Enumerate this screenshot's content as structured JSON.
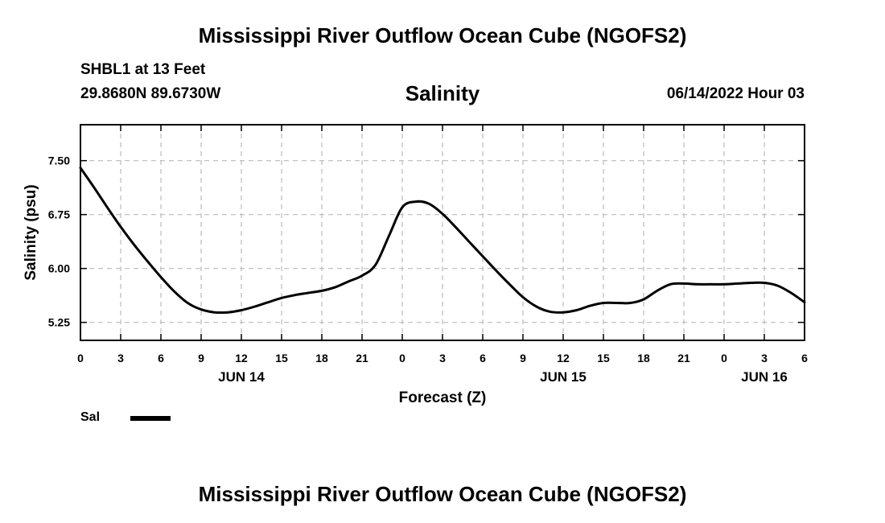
{
  "header": {
    "title": "Mississippi River Outflow Ocean Cube (NGOFS2)",
    "station": "SHBL1 at 13 Feet",
    "coordinates": "29.8680N  89.6730W",
    "datetime": "06/14/2022 Hour 03"
  },
  "footer": {
    "title": "Mississippi River Outflow Ocean Cube (NGOFS2)"
  },
  "legend": {
    "label": "Sal"
  },
  "colors": {
    "line": "#000000",
    "grid": "#bbbbbb",
    "axis": "#000000"
  },
  "chart_data": {
    "type": "line",
    "title": "Salinity",
    "xlabel": "Forecast (Z)",
    "ylabel": "Salinity (psu)",
    "xlim": [
      0,
      54
    ],
    "ylim": [
      5.0,
      8.0
    ],
    "grid": true,
    "legend_position": "bottom-left",
    "x_ticks": [
      0,
      3,
      6,
      9,
      12,
      15,
      18,
      21,
      24,
      27,
      30,
      33,
      36,
      39,
      42,
      45,
      48,
      51,
      54
    ],
    "x_tick_labels": [
      "0",
      "3",
      "6",
      "9",
      "12",
      "15",
      "18",
      "21",
      "0",
      "3",
      "6",
      "9",
      "12",
      "15",
      "18",
      "21",
      "0",
      "3",
      "6"
    ],
    "y_ticks": [
      5.25,
      6.0,
      6.75,
      7.5
    ],
    "y_tick_labels": [
      "5.25",
      "6.00",
      "6.75",
      "7.50"
    ],
    "date_labels": [
      {
        "x": 12,
        "label": "JUN 14"
      },
      {
        "x": 36,
        "label": "JUN 15"
      },
      {
        "x": 51,
        "label": "JUN 16"
      }
    ],
    "series": [
      {
        "name": "Sal",
        "x": [
          0,
          1,
          2,
          3,
          4,
          5,
          6,
          7,
          8,
          9,
          10,
          11,
          12,
          13,
          14,
          15,
          16,
          17,
          18,
          19,
          20,
          21,
          22,
          23,
          24,
          25,
          26,
          27,
          28,
          29,
          30,
          31,
          32,
          33,
          34,
          35,
          36,
          37,
          38,
          39,
          40,
          41,
          42,
          43,
          44,
          45,
          46,
          47,
          48,
          49,
          50,
          51,
          52,
          53,
          54
        ],
        "values": [
          7.4,
          7.13,
          6.85,
          6.58,
          6.33,
          6.1,
          5.88,
          5.68,
          5.52,
          5.43,
          5.39,
          5.39,
          5.42,
          5.47,
          5.53,
          5.59,
          5.63,
          5.66,
          5.69,
          5.74,
          5.82,
          5.9,
          6.05,
          6.45,
          6.85,
          6.93,
          6.9,
          6.76,
          6.57,
          6.37,
          6.17,
          5.97,
          5.78,
          5.6,
          5.47,
          5.4,
          5.39,
          5.42,
          5.48,
          5.52,
          5.52,
          5.52,
          5.57,
          5.69,
          5.78,
          5.79,
          5.78,
          5.78,
          5.78,
          5.79,
          5.8,
          5.8,
          5.76,
          5.66,
          5.53
        ]
      }
    ]
  }
}
